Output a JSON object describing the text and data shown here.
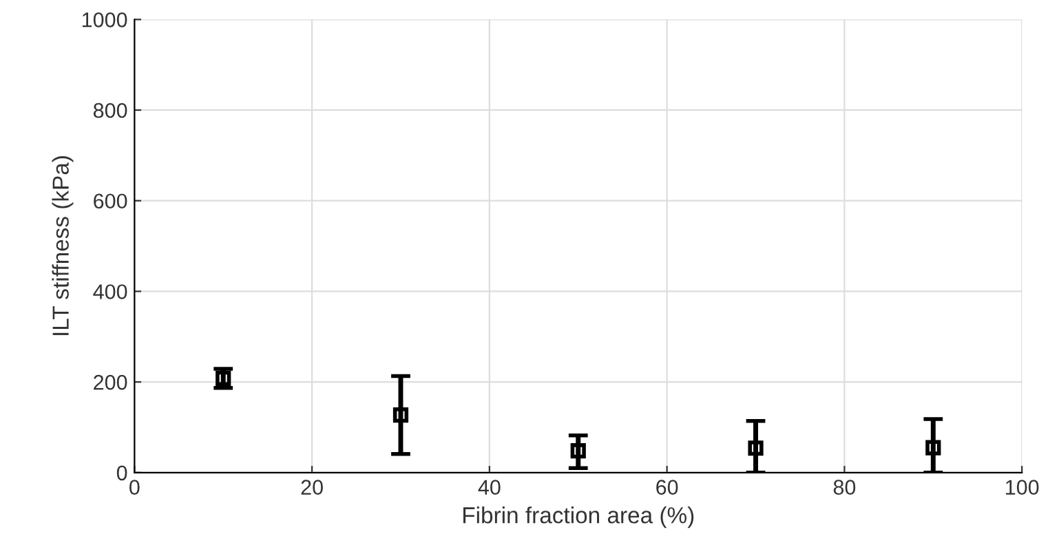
{
  "chart_data": {
    "type": "scatter",
    "xlabel": "Fibrin fraction area (%)",
    "ylabel": "ILT stiffness (kPa)",
    "x": [
      10,
      30,
      50,
      70,
      90
    ],
    "series": [
      {
        "color": "#000000",
        "values": [
          208,
          127,
          48,
          54,
          55
        ],
        "errors": [
          [
            187,
            229
          ],
          [
            41,
            213
          ],
          [
            10,
            82
          ],
          [
            0,
            114
          ],
          [
            0,
            118
          ]
        ]
      }
    ],
    "xlim": [
      0,
      100
    ],
    "xticks": [
      0,
      20,
      40,
      60,
      80,
      100
    ],
    "ylim": [
      0,
      1000
    ],
    "yticks": [
      0,
      200,
      400,
      600,
      800,
      1000
    ],
    "grid": true,
    "marker": "square",
    "legend": false
  }
}
